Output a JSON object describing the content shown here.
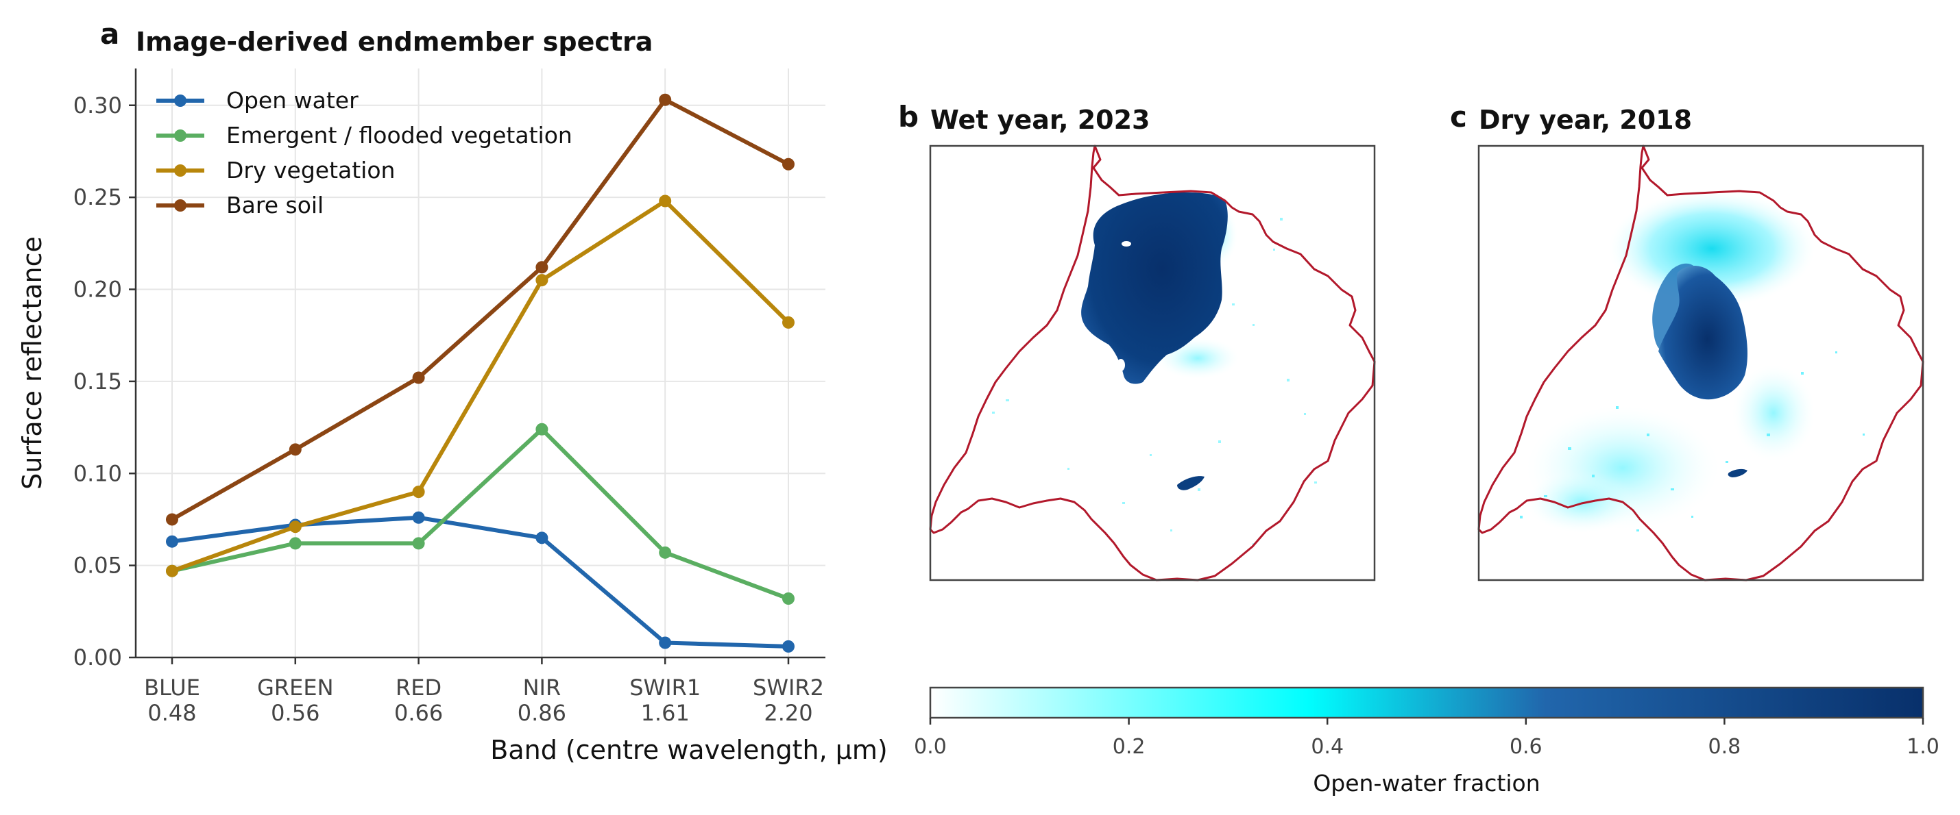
{
  "figure": {
    "panel_a_letter": "a",
    "panel_b_letter": "b",
    "panel_c_letter": "c",
    "panel_b_title": "Wet year, 2023",
    "panel_c_title": "Dry year, 2018"
  },
  "chart_data": [
    {
      "type": "line",
      "title": "Image-derived endmember spectra",
      "xlabel": "Band (centre wavelength, µm)",
      "ylabel": "Surface reflectance",
      "categories": [
        "BLUE",
        "GREEN",
        "RED",
        "NIR",
        "SWIR1",
        "SWIR2"
      ],
      "wavelengths": [
        "0.48",
        "0.56",
        "0.66",
        "0.86",
        "1.61",
        "2.20"
      ],
      "ylim": [
        0,
        0.32
      ],
      "yticks": [
        "0.00",
        "0.05",
        "0.10",
        "0.15",
        "0.20",
        "0.25",
        "0.30"
      ],
      "grid": true,
      "legend_position": "top-left",
      "series": [
        {
          "name": "Open water",
          "color": "#2166ac",
          "values": [
            0.063,
            0.072,
            0.076,
            0.065,
            0.008,
            0.006
          ]
        },
        {
          "name": "Emergent / flooded vegetation",
          "color": "#5aae61",
          "values": [
            0.047,
            0.062,
            0.062,
            0.124,
            0.057,
            0.032
          ]
        },
        {
          "name": "Dry vegetation",
          "color": "#b8860b",
          "values": [
            0.047,
            0.071,
            0.09,
            0.205,
            0.248,
            0.182
          ]
        },
        {
          "name": "Bare soil",
          "color": "#8b4513",
          "values": [
            0.075,
            0.113,
            0.152,
            0.212,
            0.303,
            0.268
          ]
        }
      ]
    },
    {
      "type": "colorbar",
      "label": "Open-water fraction",
      "range": [
        0,
        1
      ],
      "ticks": [
        "0.0",
        "0.2",
        "0.4",
        "0.6",
        "0.8",
        "1.0"
      ],
      "colors": [
        "#ffffff",
        "#00ffff",
        "#2166ac",
        "#08306b"
      ]
    }
  ]
}
